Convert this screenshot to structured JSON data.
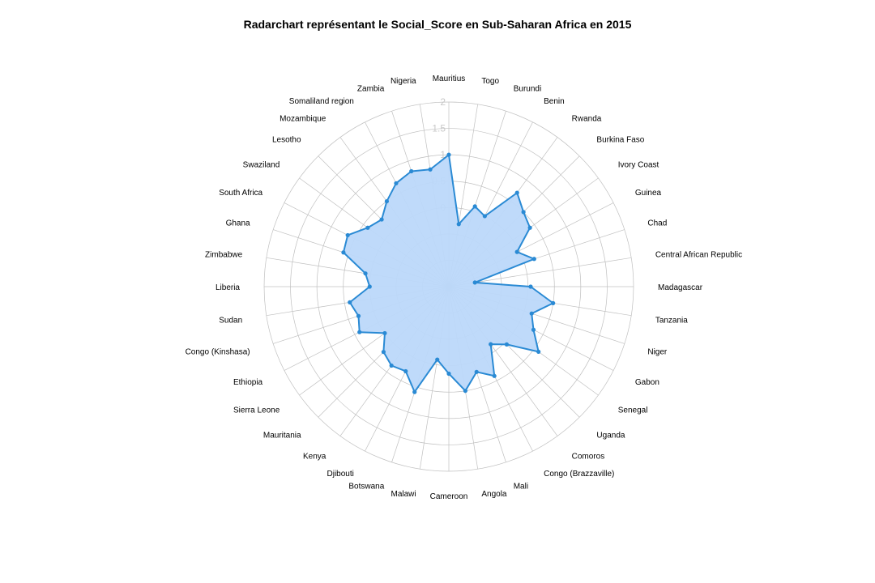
{
  "chart_data": {
    "type": "radar",
    "title": "Radarchart représentant le Social_Score en Sub-Saharan Africa en 2015",
    "rlim": [
      -1.5,
      2
    ],
    "radial_ticks": [
      "0",
      "0.5",
      "1",
      "1.5",
      "2"
    ],
    "grid": true,
    "colors": {
      "line": "#2a8ad4",
      "fill": "#bcd8fa",
      "grid": "#c0c0c0",
      "tick": "#c8c8c8"
    },
    "categories": [
      "Mauritius",
      "Togo",
      "Burundi",
      "Benin",
      "Rwanda",
      "Burkina Faso",
      "Ivory Coast",
      "Guinea",
      "Chad",
      "Central African Republic",
      "Madagascar",
      "Tanzania",
      "Niger",
      "Gabon",
      "Senegal",
      "Uganda",
      "Comoros",
      "Congo (Brazzaville)",
      "Mali",
      "Angola",
      "Cameroon",
      "Malawi",
      "Botswana",
      "Djibouti",
      "Kenya",
      "Mauritania",
      "Sierra Leone",
      "Ethiopia",
      "Congo (Kinshasa)",
      "Sudan",
      "Liberia",
      "Zimbabwe",
      "Ghana",
      "South Africa",
      "Swaziland",
      "Lesotho",
      "Mozambique",
      "Somaliland region",
      "Zambia",
      "Nigeria"
    ],
    "series": [
      {
        "values": [
          1.0,
          -0.3,
          0.1,
          0.0,
          0.7,
          0.5,
          0.4,
          -0.05,
          0.2,
          -1.0,
          0.05,
          0.5,
          0.15,
          0.3,
          0.6,
          0.05,
          -0.15,
          0.4,
          0.2,
          0.5,
          0.15,
          -0.1,
          0.6,
          0.3,
          0.35,
          0.25,
          0.0,
          0.4,
          0.3,
          0.4,
          0.0,
          0.1,
          0.6,
          0.65,
          0.4,
          0.3,
          0.5,
          0.7,
          0.8,
          0.75
        ]
      }
    ]
  }
}
